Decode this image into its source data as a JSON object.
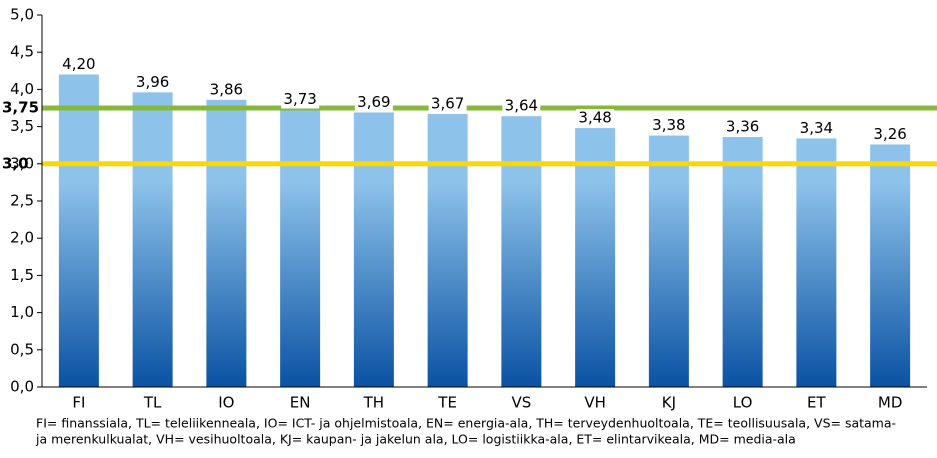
{
  "chart_data": {
    "type": "bar",
    "categories": [
      "FI",
      "TL",
      "IO",
      "EN",
      "TH",
      "TE",
      "VS",
      "VH",
      "KJ",
      "LO",
      "ET",
      "MD"
    ],
    "values": [
      4.2,
      3.96,
      3.86,
      3.73,
      3.69,
      3.67,
      3.64,
      3.48,
      3.38,
      3.36,
      3.34,
      3.26
    ],
    "value_labels": [
      "4,20",
      "3,96",
      "3,86",
      "3,73",
      "3,69",
      "3,67",
      "3,64",
      "3,48",
      "3,38",
      "3,36",
      "3,34",
      "3,26"
    ],
    "color": [
      "#8dc2ea",
      "#0a52a3"
    ],
    "ylim": [
      0,
      5
    ],
    "yticks": [
      {
        "value": 0,
        "label": "0,0"
      },
      {
        "value": 0.5,
        "label": "0,5"
      },
      {
        "value": 1,
        "label": "1,0"
      },
      {
        "value": 1.5,
        "label": "1,5"
      },
      {
        "value": 2,
        "label": "2,0"
      },
      {
        "value": 2.5,
        "label": "2,5"
      },
      {
        "value": 3,
        "label": "3,0"
      },
      {
        "value": 3.5,
        "label": "3,5"
      },
      {
        "value": 4,
        "label": "4,0"
      },
      {
        "value": 4.5,
        "label": "4,5"
      },
      {
        "value": 5,
        "label": "5,0"
      }
    ],
    "reference_lines": [
      {
        "value": 3.75,
        "label": "3,75",
        "color": "#86b83a"
      },
      {
        "value": 3,
        "label": "3,0",
        "color": "#ffd700"
      }
    ],
    "note": [
      "FI= finanssiala, TL= teleliikenneala, IO= ICT- ja ohjelmistoala, EN= energia-ala, TH= terveydenhuoltoala, TE= teollisuusala, VS= satama-",
      "ja merenkulkualat, VH= vesihuoltoala, KJ= kaupan- ja jakelun ala, LO= logistiikka-ala, ET= elintarvikeala, MD= media-ala"
    ]
  }
}
